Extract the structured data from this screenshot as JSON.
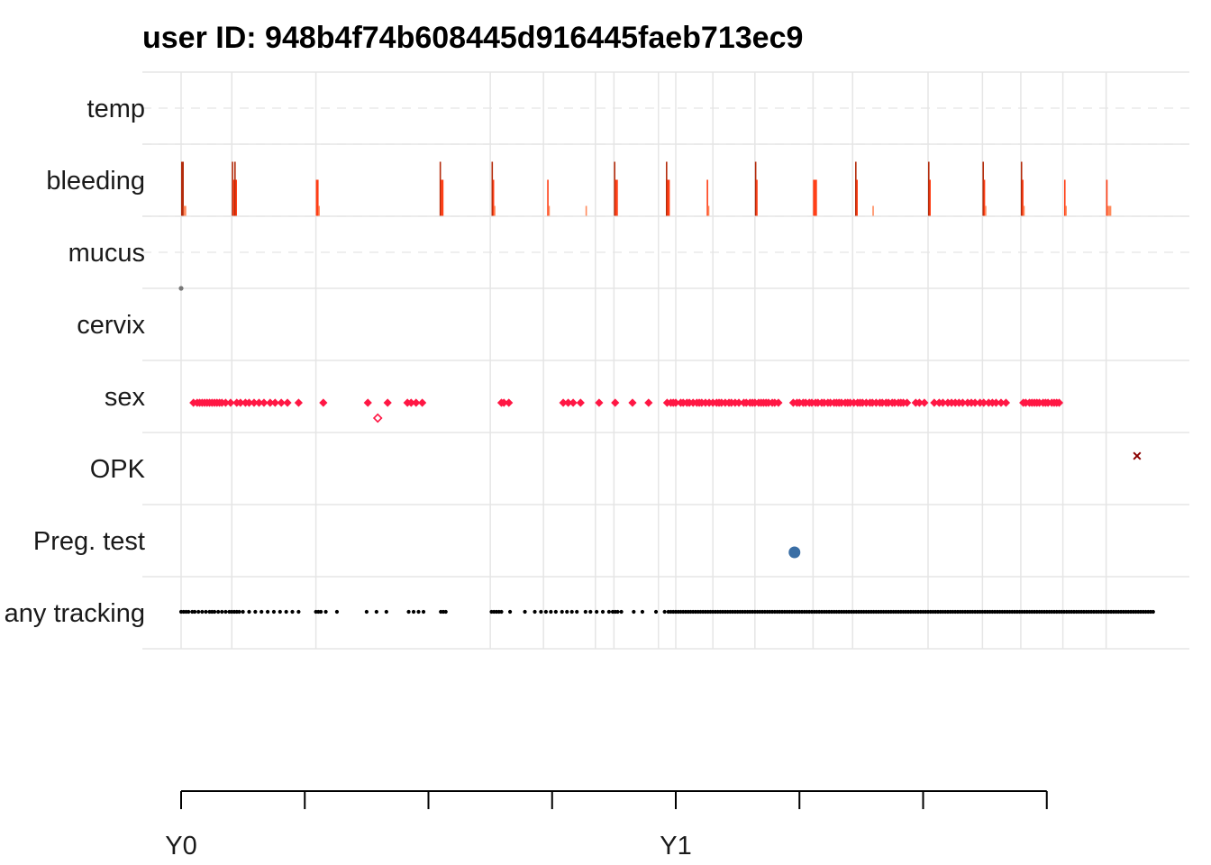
{
  "chart_data": {
    "type": "scatter",
    "title": "user ID:  948b4f74b608445d916445faeb713ec9",
    "xlabel": "",
    "ylabel": "",
    "x_unit": "days",
    "xlim": [
      -16,
      792
    ],
    "x_tick_days": [
      0,
      100,
      200,
      300,
      400,
      500,
      600,
      700
    ],
    "x_tick_labels": [
      {
        "day": 0,
        "label": "Y0"
      },
      {
        "day": 400,
        "label": "Y1"
      }
    ],
    "x_vertical_gridlines": [
      0,
      41,
      109,
      250,
      293,
      335,
      350,
      386,
      400,
      430,
      464,
      511,
      543,
      604,
      648,
      679,
      713,
      748
    ],
    "grid": true,
    "rows": [
      "temp",
      "bleeding",
      "mucus",
      "cervix",
      "sex",
      "OPK",
      "Preg. test",
      "any tracking"
    ],
    "colors": {
      "bleeding_heavy": "#B32A0A",
      "bleeding_medium": "#FF3D14",
      "bleeding_light": "#FF8A5C",
      "sex": "#FF1744",
      "opk": "#8B0000",
      "preg_test": "#3A6EA5",
      "tracking": "#000000",
      "mucus": "#777777",
      "grid": "#E5E5E5"
    },
    "series": {
      "bleeding": [
        {
          "day": 0,
          "level": 3
        },
        {
          "day": 1,
          "level": 3
        },
        {
          "day": 2,
          "level": 1
        },
        {
          "day": 3,
          "level": 1
        },
        {
          "day": 41,
          "level": 3
        },
        {
          "day": 42,
          "level": 2
        },
        {
          "day": 43,
          "level": 3
        },
        {
          "day": 44,
          "level": 2
        },
        {
          "day": 109,
          "level": 2
        },
        {
          "day": 110,
          "level": 2
        },
        {
          "day": 111,
          "level": 1
        },
        {
          "day": 209,
          "level": 3
        },
        {
          "day": 210,
          "level": 2
        },
        {
          "day": 211,
          "level": 2
        },
        {
          "day": 251,
          "level": 3
        },
        {
          "day": 252,
          "level": 2
        },
        {
          "day": 253,
          "level": 1
        },
        {
          "day": 296,
          "level": 2
        },
        {
          "day": 297,
          "level": 1
        },
        {
          "day": 327,
          "level": 1
        },
        {
          "day": 350,
          "level": 3
        },
        {
          "day": 351,
          "level": 2
        },
        {
          "day": 352,
          "level": 2
        },
        {
          "day": 392,
          "level": 3
        },
        {
          "day": 393,
          "level": 2
        },
        {
          "day": 394,
          "level": 2
        },
        {
          "day": 425,
          "level": 2
        },
        {
          "day": 426,
          "level": 1
        },
        {
          "day": 464,
          "level": 3
        },
        {
          "day": 465,
          "level": 2
        },
        {
          "day": 511,
          "level": 2
        },
        {
          "day": 512,
          "level": 2
        },
        {
          "day": 513,
          "level": 2
        },
        {
          "day": 545,
          "level": 3
        },
        {
          "day": 546,
          "level": 2
        },
        {
          "day": 559,
          "level": 1
        },
        {
          "day": 604,
          "level": 3
        },
        {
          "day": 605,
          "level": 2
        },
        {
          "day": 648,
          "level": 3
        },
        {
          "day": 649,
          "level": 2
        },
        {
          "day": 650,
          "level": 1
        },
        {
          "day": 679,
          "level": 3
        },
        {
          "day": 680,
          "level": 2
        },
        {
          "day": 681,
          "level": 1
        },
        {
          "day": 714,
          "level": 2
        },
        {
          "day": 715,
          "level": 1
        },
        {
          "day": 748,
          "level": 2
        },
        {
          "day": 749,
          "level": 1
        },
        {
          "day": 750,
          "level": 1
        },
        {
          "day": 751,
          "level": 1
        }
      ],
      "mucus": [
        0
      ],
      "sex": [
        10,
        13,
        15,
        17,
        19,
        21,
        23,
        25,
        27,
        29,
        31,
        33,
        36,
        40,
        45,
        48,
        52,
        55,
        59,
        63,
        67,
        72,
        76,
        81,
        86,
        95,
        115,
        151,
        167,
        183,
        186,
        190,
        195,
        259,
        261,
        265,
        309,
        313,
        317,
        323,
        338,
        351,
        365,
        378,
        393,
        396,
        398,
        400,
        404,
        406,
        409,
        411,
        414,
        417,
        419,
        421,
        424,
        427,
        430,
        433,
        435,
        437,
        440,
        443,
        445,
        448,
        451,
        455,
        457,
        460,
        462,
        464,
        467,
        469,
        471,
        473,
        475,
        478,
        480,
        483,
        495,
        498,
        500,
        503,
        505,
        508,
        510,
        513,
        515,
        518,
        520,
        523,
        525,
        528,
        530,
        532,
        534,
        537,
        539,
        541,
        544,
        547,
        549,
        551,
        554,
        557,
        559,
        562,
        565,
        567,
        570,
        572,
        575,
        577,
        580,
        582,
        584,
        587,
        594,
        597,
        601,
        609,
        613,
        616,
        620,
        623,
        626,
        629,
        632,
        636,
        639,
        642,
        646,
        649,
        653,
        656,
        659,
        663,
        667,
        681,
        683,
        686,
        688,
        690,
        692,
        694,
        697,
        699,
        701,
        704,
        706,
        708,
        710
      ],
      "sex_unprotected": [
        159
      ],
      "opk": [
        773
      ],
      "preg_test": [
        496
      ],
      "tracking": [
        0,
        2,
        4,
        6,
        9,
        11,
        14,
        17,
        20,
        23,
        25,
        27,
        30,
        33,
        36,
        39,
        41,
        43,
        45,
        47,
        50,
        55,
        60,
        65,
        70,
        75,
        80,
        85,
        90,
        95,
        109,
        111,
        113,
        117,
        126,
        150,
        158,
        166,
        184,
        188,
        192,
        196,
        210,
        212,
        214,
        251,
        253,
        255,
        257,
        259,
        266,
        278,
        286,
        291,
        295,
        299,
        303,
        308,
        312,
        316,
        320,
        327,
        331,
        336,
        341,
        346,
        349,
        351,
        353,
        356,
        366,
        373,
        384,
        391,
        394,
        396,
        398,
        400,
        402,
        404,
        406,
        408,
        410,
        412,
        414,
        416,
        418,
        420,
        422,
        424,
        426,
        428,
        430,
        432,
        434,
        436,
        438,
        440,
        442,
        444,
        446,
        448,
        450,
        452,
        454,
        456,
        458,
        460,
        462,
        464,
        466,
        468,
        470,
        472,
        474,
        476,
        478,
        480,
        482,
        484,
        486,
        488,
        490,
        492,
        494,
        496,
        498,
        500,
        502,
        504,
        506,
        508,
        510,
        512,
        514,
        516,
        518,
        520,
        522,
        524,
        526,
        528,
        530,
        532,
        534,
        536,
        538,
        540,
        542,
        544,
        546,
        548,
        550,
        552,
        554,
        556,
        558,
        560,
        562,
        564,
        566,
        568,
        570,
        572,
        574,
        576,
        578,
        580,
        582,
        584,
        586,
        588,
        590,
        592,
        594,
        596,
        598,
        600,
        602,
        604,
        606,
        608,
        610,
        612,
        614,
        616,
        618,
        620,
        622,
        624,
        626,
        628,
        630,
        632,
        634,
        636,
        638,
        640,
        642,
        644,
        646,
        648,
        650,
        652,
        654,
        656,
        658,
        660,
        662,
        664,
        666,
        668,
        670,
        672,
        674,
        676,
        678,
        680,
        682,
        684,
        686,
        688,
        690,
        692,
        694,
        696,
        698,
        700,
        702,
        704,
        706,
        708,
        710,
        712,
        714,
        716,
        718,
        720,
        722,
        724,
        726,
        728,
        730,
        732,
        734,
        736,
        738,
        740,
        742,
        744,
        746,
        748,
        750,
        752,
        754,
        756,
        758,
        760,
        762,
        764,
        766,
        768,
        770,
        772,
        774,
        776,
        778,
        780,
        782,
        784,
        786
      ]
    }
  }
}
